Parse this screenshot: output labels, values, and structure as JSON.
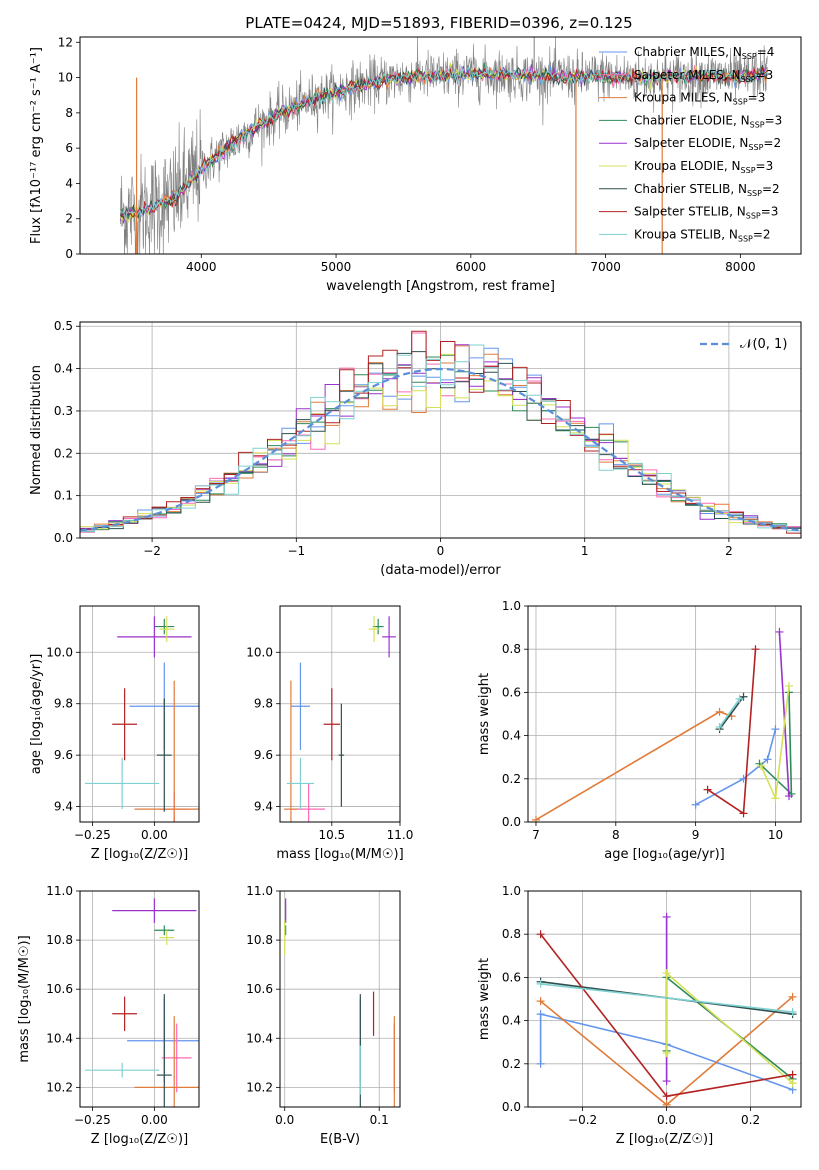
{
  "figure": {
    "title": "PLATE=0424, MJD=51893, FIBERID=0396, z=0.125"
  },
  "colors": {
    "Chabrier MILES": "#6495ed",
    "Salpeter MILES": "#ff69b4",
    "Kroupa MILES": "#e07b39",
    "Chabrier ELODIE": "#2e8b57",
    "Salpeter ELODIE": "#9932cc",
    "Kroupa ELODIE": "#d4e157",
    "Chabrier STELIB": "#2f4f4f",
    "Salpeter STELIB": "#b22222",
    "Kroupa STELIB": "#7fd1d1",
    "data": "#808080"
  },
  "chart_data": [
    {
      "id": "spectrum",
      "type": "line",
      "title": "PLATE=0424, MJD=51893, FIBERID=0396, z=0.125",
      "xlabel": "wavelength [Angstrom, rest frame]",
      "ylabel": "Flux [fλ10⁻¹⁷ erg cm⁻² s⁻¹ A⁻¹]",
      "xlim": [
        3100,
        8450
      ],
      "ylim": [
        0,
        12.3
      ],
      "xticks": [
        4000,
        5000,
        6000,
        7000,
        8000
      ],
      "yticks": [
        0,
        2,
        4,
        6,
        8,
        10,
        12
      ],
      "grid": false,
      "legend_position": "right",
      "legend": [
        {
          "label": "Chabrier MILES, N",
          "sub": "SSP",
          "suffix": "=4",
          "key": "Chabrier MILES"
        },
        {
          "label": "Salpeter MILES, N",
          "sub": "SSP",
          "suffix": "=3",
          "key": "Salpeter MILES"
        },
        {
          "label": "Kroupa MILES, N",
          "sub": "SSP",
          "suffix": "=3",
          "key": "Kroupa MILES"
        },
        {
          "label": "Chabrier ELODIE, N",
          "sub": "SSP",
          "suffix": "=3",
          "key": "Chabrier ELODIE"
        },
        {
          "label": "Salpeter ELODIE, N",
          "sub": "SSP",
          "suffix": "=2",
          "key": "Salpeter ELODIE"
        },
        {
          "label": "Kroupa ELODIE, N",
          "sub": "SSP",
          "suffix": "=3",
          "key": "Kroupa ELODIE"
        },
        {
          "label": "Chabrier STELIB, N",
          "sub": "SSP",
          "suffix": "=2",
          "key": "Chabrier STELIB"
        },
        {
          "label": "Salpeter STELIB, N",
          "sub": "SSP",
          "suffix": "=3",
          "key": "Salpeter STELIB"
        },
        {
          "label": "Kroupa STELIB, N",
          "sub": "SSP",
          "suffix": "=2",
          "key": "Kroupa STELIB"
        }
      ],
      "continuum": {
        "x": [
          3400,
          3600,
          3800,
          4000,
          4200,
          4400,
          4600,
          4800,
          5000,
          5200,
          5400,
          5600,
          5800,
          6000,
          6200,
          6400,
          6600,
          6800,
          7000,
          7200,
          7400,
          7600,
          7800,
          8000,
          8200
        ],
        "y": [
          2.2,
          2.5,
          3.2,
          4.8,
          6.1,
          7.2,
          8.0,
          8.7,
          9.2,
          9.6,
          9.9,
          10.1,
          10.1,
          10.2,
          10.2,
          10.1,
          10.1,
          10.0,
          10.1,
          10.0,
          10.0,
          10.1,
          10.1,
          10.0,
          10.3
        ]
      }
    },
    {
      "id": "residuals",
      "type": "line",
      "xlabel": "(data-model)/error",
      "ylabel": "Normed distribution",
      "xlim": [
        -2.5,
        2.5
      ],
      "ylim": [
        0,
        0.51
      ],
      "xticks": [
        -2,
        -1,
        0,
        1,
        2
      ],
      "yticks": [
        0.0,
        0.1,
        0.2,
        0.3,
        0.4,
        0.5
      ],
      "grid": true,
      "legend_position": "top-right",
      "reference_label": "𝒩(0, 1)"
    },
    {
      "id": "age-vs-Z",
      "type": "scatter",
      "xlabel": "Z [log₁₀(Z/Z☉)]",
      "ylabel": "age [log₁₀(age/yr)]",
      "xlim": [
        -0.3,
        0.18
      ],
      "ylim": [
        9.34,
        10.18
      ],
      "xticks": [
        -0.25,
        0.0
      ],
      "yticks": [
        9.4,
        9.6,
        9.8,
        10.0
      ],
      "grid": true,
      "points": [
        {
          "model": "Chabrier MILES",
          "x": 0.04,
          "y": 9.79,
          "xerr": 0.14,
          "yerr": 0.17
        },
        {
          "model": "Salpeter MILES",
          "x": 0.08,
          "y": 9.39,
          "xerr": 0.06,
          "yerr": 0.07
        },
        {
          "model": "Kroupa MILES",
          "x": 0.08,
          "y": 9.39,
          "xerr": 0.16,
          "yerr": 0.5
        },
        {
          "model": "Chabrier ELODIE",
          "x": 0.04,
          "y": 10.1,
          "xerr": 0.04,
          "yerr": 0.03
        },
        {
          "model": "Salpeter ELODIE",
          "x": 0.0,
          "y": 10.06,
          "xerr": 0.15,
          "yerr": 0.08
        },
        {
          "model": "Kroupa ELODIE",
          "x": 0.05,
          "y": 10.09,
          "xerr": 0.03,
          "yerr": 0.05
        },
        {
          "model": "Chabrier STELIB",
          "x": 0.04,
          "y": 9.6,
          "xerr": 0.03,
          "yerr": 0.22
        },
        {
          "model": "Salpeter STELIB",
          "x": -0.12,
          "y": 9.72,
          "xerr": 0.05,
          "yerr": 0.14
        },
        {
          "model": "Kroupa STELIB",
          "x": -0.13,
          "y": 9.49,
          "xerr": 0.15,
          "yerr": 0.1
        }
      ]
    },
    {
      "id": "age-vs-mass",
      "type": "scatter",
      "xlabel": "mass [log₁₀(M/M☉)]",
      "ylabel": "",
      "xlim": [
        10.12,
        11.0
      ],
      "ylim": [
        9.34,
        10.18
      ],
      "xticks": [
        10.5,
        11.0
      ],
      "yticks": [
        9.4,
        9.6,
        9.8,
        10.0
      ],
      "grid": true,
      "points": [
        {
          "model": "Chabrier MILES",
          "x": 10.27,
          "y": 9.79,
          "xerr": 0.07,
          "yerr": 0.17
        },
        {
          "model": "Salpeter MILES",
          "x": 10.33,
          "y": 9.39,
          "xerr": 0.12,
          "yerr": 0.1
        },
        {
          "model": "Kroupa MILES",
          "x": 10.2,
          "y": 9.39,
          "xerr": 0.05,
          "yerr": 0.5
        },
        {
          "model": "Chabrier ELODIE",
          "x": 10.84,
          "y": 10.1,
          "xerr": 0.04,
          "yerr": 0.03
        },
        {
          "model": "Salpeter ELODIE",
          "x": 10.92,
          "y": 10.06,
          "xerr": 0.05,
          "yerr": 0.08
        },
        {
          "model": "Kroupa ELODIE",
          "x": 10.81,
          "y": 10.09,
          "xerr": 0.04,
          "yerr": 0.05
        },
        {
          "model": "Chabrier STELIB",
          "x": 10.57,
          "y": 9.6,
          "xerr": 0.02,
          "yerr": 0.2
        },
        {
          "model": "Salpeter STELIB",
          "x": 10.5,
          "y": 9.72,
          "xerr": 0.06,
          "yerr": 0.14
        },
        {
          "model": "Kroupa STELIB",
          "x": 10.27,
          "y": 9.49,
          "xerr": 0.1,
          "yerr": 0.1
        }
      ]
    },
    {
      "id": "mass-weight-vs-age",
      "type": "line",
      "xlabel": "age [log₁₀(age/yr)]",
      "ylabel": "mass weight",
      "xlim": [
        6.9,
        10.32
      ],
      "ylim": [
        0,
        1.0
      ],
      "xticks": [
        7,
        8,
        9,
        10
      ],
      "yticks": [
        0.0,
        0.2,
        0.4,
        0.6,
        0.8,
        1.0
      ],
      "grid": true,
      "series": [
        {
          "model": "Chabrier MILES",
          "x": [
            9.0,
            9.6,
            9.9,
            10.0
          ],
          "y": [
            0.08,
            0.2,
            0.29,
            0.43
          ]
        },
        {
          "model": "Kroupa MILES",
          "x": [
            7.0,
            9.3,
            9.45
          ],
          "y": [
            0.01,
            0.51,
            0.49
          ]
        },
        {
          "model": "Chabrier ELODIE",
          "x": [
            9.8,
            10.2,
            10.17
          ],
          "y": [
            0.27,
            0.13,
            0.6
          ]
        },
        {
          "model": "Salpeter ELODIE",
          "x": [
            10.05,
            10.17
          ],
          "y": [
            0.88,
            0.12
          ]
        },
        {
          "model": "Kroupa ELODIE",
          "x": [
            9.82,
            10.0,
            10.17
          ],
          "y": [
            0.26,
            0.11,
            0.63
          ]
        },
        {
          "model": "Chabrier STELIB",
          "x": [
            9.3,
            9.6
          ],
          "y": [
            0.43,
            0.58
          ]
        },
        {
          "model": "Salpeter STELIB",
          "x": [
            9.15,
            9.6,
            9.75
          ],
          "y": [
            0.15,
            0.04,
            0.8
          ]
        },
        {
          "model": "Kroupa STELIB",
          "x": [
            9.3,
            9.55
          ],
          "y": [
            0.44,
            0.57
          ]
        }
      ]
    },
    {
      "id": "mass-vs-Z",
      "type": "scatter",
      "xlabel": "Z [log₁₀(Z/Z☉)]",
      "ylabel": "mass [log₁₀(M/M☉)]",
      "xlim": [
        -0.3,
        0.18
      ],
      "ylim": [
        10.12,
        11.0
      ],
      "xticks": [
        -0.25,
        0.0
      ],
      "yticks": [
        10.2,
        10.4,
        10.6,
        10.8,
        11.0
      ],
      "grid": true,
      "points": [
        {
          "model": "Chabrier MILES",
          "x": 0.04,
          "y": 10.39,
          "xerr": 0.15,
          "yerr": 0.17
        },
        {
          "model": "Salpeter MILES",
          "x": 0.09,
          "y": 10.32,
          "xerr": 0.06,
          "yerr": 0.14
        },
        {
          "model": "Kroupa MILES",
          "x": 0.08,
          "y": 10.2,
          "xerr": 0.16,
          "yerr": 0.29
        },
        {
          "model": "Chabrier ELODIE",
          "x": 0.04,
          "y": 10.84,
          "xerr": 0.04,
          "yerr": 0.02
        },
        {
          "model": "Salpeter ELODIE",
          "x": 0.0,
          "y": 10.92,
          "xerr": 0.17,
          "yerr": 0.05
        },
        {
          "model": "Kroupa ELODIE",
          "x": 0.05,
          "y": 10.81,
          "xerr": 0.03,
          "yerr": 0.03
        },
        {
          "model": "Chabrier STELIB",
          "x": 0.04,
          "y": 10.25,
          "xerr": 0.03,
          "yerr": 0.33
        },
        {
          "model": "Salpeter STELIB",
          "x": -0.12,
          "y": 10.5,
          "xerr": 0.05,
          "yerr": 0.07
        },
        {
          "model": "Kroupa STELIB",
          "x": -0.13,
          "y": 10.27,
          "xerr": 0.15,
          "yerr": 0.03
        }
      ]
    },
    {
      "id": "mass-vs-ebv",
      "type": "scatter",
      "xlabel": "E(B-V)",
      "ylabel": "",
      "xlim": [
        -0.005,
        0.122
      ],
      "ylim": [
        10.12,
        11.0
      ],
      "xticks": [
        0.0,
        0.1
      ],
      "yticks": [
        10.2,
        10.4,
        10.6,
        10.8,
        11.0
      ],
      "grid": true,
      "points": [
        {
          "model": "Chabrier MILES",
          "x": 0.08,
          "y": 10.39,
          "yerr": 0.17
        },
        {
          "model": "Salpeter MILES",
          "x": 0.116,
          "y": 10.32,
          "yerr": 0.14
        },
        {
          "model": "Kroupa MILES",
          "x": 0.116,
          "y": 10.2,
          "yerr": 0.29
        },
        {
          "model": "Chabrier ELODIE",
          "x": 0.001,
          "y": 10.84,
          "yerr": 0.02
        },
        {
          "model": "Salpeter ELODIE",
          "x": 0.001,
          "y": 10.92,
          "yerr": 0.05
        },
        {
          "model": "Kroupa ELODIE",
          "x": 0.0,
          "y": 10.81,
          "yerr": 0.07
        },
        {
          "model": "Chabrier STELIB",
          "x": 0.08,
          "y": 10.25,
          "yerr": 0.33
        },
        {
          "model": "Salpeter STELIB",
          "x": 0.094,
          "y": 10.5,
          "yerr": 0.09
        },
        {
          "model": "Kroupa STELIB",
          "x": 0.08,
          "y": 10.27,
          "yerr": 0.1
        }
      ]
    },
    {
      "id": "mass-weight-vs-Z",
      "type": "line",
      "xlabel": "Z [log₁₀(Z/Z☉)]",
      "ylabel": "mass weight",
      "xlim": [
        -0.33,
        0.32
      ],
      "ylim": [
        0,
        1.0
      ],
      "xticks": [
        -0.2,
        0.0,
        0.2
      ],
      "yticks": [
        0.0,
        0.2,
        0.4,
        0.6,
        0.8,
        1.0
      ],
      "grid": true,
      "series": [
        {
          "model": "Chabrier MILES",
          "x": [
            -0.3,
            -0.3,
            0.0,
            0.3
          ],
          "y": [
            0.2,
            0.43,
            0.29,
            0.08
          ]
        },
        {
          "model": "Kroupa MILES",
          "x": [
            -0.3,
            0.0,
            0.3
          ],
          "y": [
            0.49,
            0.01,
            0.51
          ]
        },
        {
          "model": "Chabrier ELODIE",
          "x": [
            0.0,
            0.0,
            0.3
          ],
          "y": [
            0.26,
            0.6,
            0.13
          ]
        },
        {
          "model": "Salpeter ELODIE",
          "x": [
            0.0,
            0.0
          ],
          "y": [
            0.12,
            0.88
          ]
        },
        {
          "model": "Kroupa ELODIE",
          "x": [
            0.0,
            0.0,
            0.3
          ],
          "y": [
            0.25,
            0.62,
            0.11
          ]
        },
        {
          "model": "Chabrier STELIB",
          "x": [
            -0.3,
            0.3
          ],
          "y": [
            0.58,
            0.43
          ]
        },
        {
          "model": "Salpeter STELIB",
          "x": [
            -0.3,
            0.0,
            0.3
          ],
          "y": [
            0.8,
            0.05,
            0.15
          ]
        },
        {
          "model": "Kroupa STELIB",
          "x": [
            -0.3,
            0.3
          ],
          "y": [
            0.57,
            0.44
          ]
        }
      ]
    }
  ]
}
